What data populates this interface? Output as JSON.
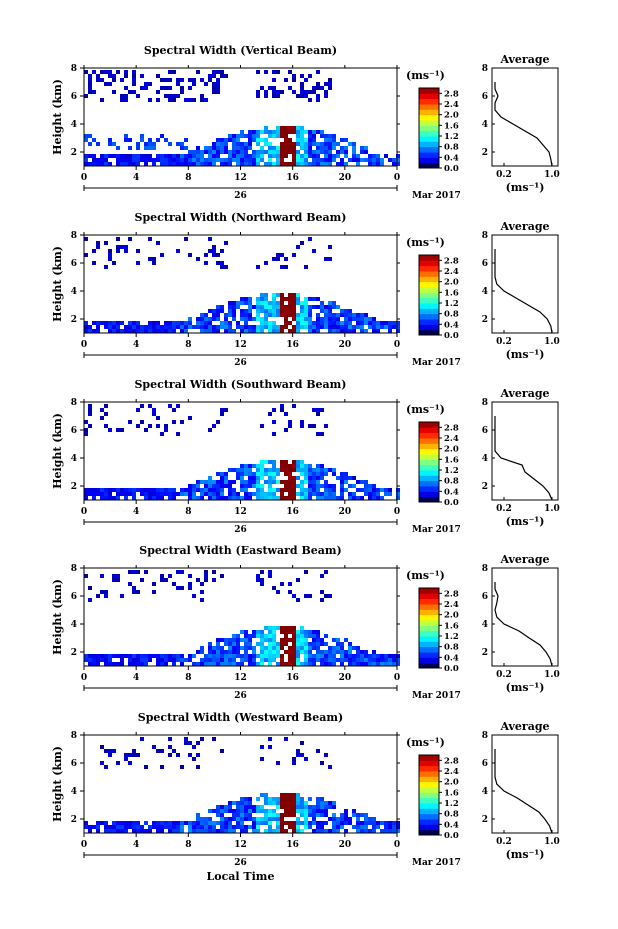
{
  "chart_data": [
    {
      "type": "heatmap",
      "title": "Spectral Width (Vertical Beam)",
      "ylabel": "Height (km)",
      "x_ticks": [
        "0",
        "4",
        "8",
        "12",
        "16",
        "20",
        "0"
      ],
      "y_ticks": [
        "2",
        "4",
        "6",
        "8"
      ],
      "xlim": [
        0,
        24
      ],
      "ylim": [
        1,
        8
      ],
      "date_day": "26",
      "date_month": "Mar 2017",
      "colorbar": {
        "unit": "(ms⁻¹)",
        "ticks": [
          "2.8",
          "2.4",
          "2.0",
          "1.6",
          "1.2",
          "0.8",
          "0.4",
          "0.0"
        ],
        "range": [
          0,
          3
        ]
      },
      "profile": {
        "title": "Average",
        "x_ticks": [
          "0.2",
          "1.0"
        ],
        "xlabel": "(ms⁻¹)",
        "y_ticks": [
          "2",
          "4",
          "6",
          "8"
        ],
        "xlim": [
          0,
          1.1
        ],
        "ylim": [
          1,
          8
        ],
        "heights": [
          1.0,
          1.5,
          2.0,
          2.5,
          3.0,
          3.5,
          4.0,
          4.5,
          5.0,
          5.5,
          6.0,
          6.5,
          7.0
        ],
        "values": [
          1.0,
          0.98,
          0.95,
          0.85,
          0.75,
          0.55,
          0.35,
          0.15,
          0.05,
          0.05,
          0.1,
          0.05,
          0.05
        ]
      }
    },
    {
      "type": "heatmap",
      "title": "Spectral Width (Northward Beam)",
      "ylabel": "Height (km)",
      "x_ticks": [
        "0",
        "4",
        "8",
        "12",
        "16",
        "20",
        "0"
      ],
      "y_ticks": [
        "2",
        "4",
        "6",
        "8"
      ],
      "xlim": [
        0,
        24
      ],
      "ylim": [
        1,
        8
      ],
      "date_day": "26",
      "date_month": "Mar 2017",
      "colorbar": {
        "unit": "(ms⁻¹)",
        "ticks": [
          "2.8",
          "2.4",
          "2.0",
          "1.6",
          "1.2",
          "0.8",
          "0.4",
          "0.0"
        ],
        "range": [
          0,
          3
        ]
      },
      "profile": {
        "title": "Average",
        "x_ticks": [
          "0.2",
          "1.0"
        ],
        "xlabel": "(ms⁻¹)",
        "y_ticks": [
          "2",
          "4",
          "6",
          "8"
        ],
        "xlim": [
          0,
          1.1
        ],
        "ylim": [
          1,
          8
        ],
        "heights": [
          1.0,
          1.5,
          2.0,
          2.5,
          3.0,
          3.5,
          4.0,
          4.5,
          5.0,
          5.5,
          6.0,
          6.5,
          7.0
        ],
        "values": [
          1.0,
          0.98,
          0.92,
          0.8,
          0.6,
          0.4,
          0.2,
          0.08,
          0.05,
          0.05,
          0.05,
          0.05,
          0.05
        ]
      }
    },
    {
      "type": "heatmap",
      "title": "Spectral Width (Southward Beam)",
      "ylabel": "Height (km)",
      "x_ticks": [
        "0",
        "4",
        "8",
        "12",
        "16",
        "20",
        "0"
      ],
      "y_ticks": [
        "2",
        "4",
        "6",
        "8"
      ],
      "xlim": [
        0,
        24
      ],
      "ylim": [
        1,
        8
      ],
      "date_day": "26",
      "date_month": "Mar 2017",
      "colorbar": {
        "unit": "(ms⁻¹)",
        "ticks": [
          "2.8",
          "2.4",
          "2.0",
          "1.6",
          "1.2",
          "0.8",
          "0.4",
          "0.0"
        ],
        "range": [
          0,
          3
        ]
      },
      "profile": {
        "title": "Average",
        "x_ticks": [
          "0.2",
          "1.0"
        ],
        "xlabel": "(ms⁻¹)",
        "y_ticks": [
          "2",
          "4",
          "6",
          "8"
        ],
        "xlim": [
          0,
          1.1
        ],
        "ylim": [
          1,
          8
        ],
        "heights": [
          1.0,
          1.5,
          2.0,
          2.5,
          3.0,
          3.5,
          4.0,
          4.5,
          5.0,
          5.5,
          6.0,
          6.5,
          7.0
        ],
        "values": [
          1.0,
          0.95,
          0.85,
          0.7,
          0.55,
          0.5,
          0.15,
          0.05,
          0.05,
          0.05,
          0.05,
          0.05,
          0.05
        ]
      }
    },
    {
      "type": "heatmap",
      "title": "Spectral Width (Eastward Beam)",
      "ylabel": "Height (km)",
      "x_ticks": [
        "0",
        "4",
        "8",
        "12",
        "16",
        "20",
        "0"
      ],
      "y_ticks": [
        "2",
        "4",
        "6",
        "8"
      ],
      "xlim": [
        0,
        24
      ],
      "ylim": [
        1,
        8
      ],
      "date_day": "26",
      "date_month": "Mar 2017",
      "colorbar": {
        "unit": "(ms⁻¹)",
        "ticks": [
          "2.8",
          "2.4",
          "2.0",
          "1.6",
          "1.2",
          "0.8",
          "0.4",
          "0.0"
        ],
        "range": [
          0,
          3
        ]
      },
      "profile": {
        "title": "Average",
        "x_ticks": [
          "0.2",
          "1.0"
        ],
        "xlabel": "(ms⁻¹)",
        "y_ticks": [
          "2",
          "4",
          "6",
          "8"
        ],
        "xlim": [
          0,
          1.1
        ],
        "ylim": [
          1,
          8
        ],
        "heights": [
          1.0,
          1.5,
          2.0,
          2.5,
          3.0,
          3.5,
          4.0,
          4.5,
          5.0,
          5.5,
          6.0,
          6.5,
          7.0
        ],
        "values": [
          1.0,
          0.97,
          0.9,
          0.8,
          0.62,
          0.45,
          0.2,
          0.08,
          0.05,
          0.08,
          0.1,
          0.05,
          0.05
        ]
      }
    },
    {
      "type": "heatmap",
      "title": "Spectral Width (Westward Beam)",
      "ylabel": "Height (km)",
      "x_ticks": [
        "0",
        "4",
        "8",
        "12",
        "16",
        "20",
        "0"
      ],
      "y_ticks": [
        "2",
        "4",
        "6",
        "8"
      ],
      "xlim": [
        0,
        24
      ],
      "ylim": [
        1,
        8
      ],
      "date_day": "26",
      "date_month": "Mar 2017",
      "xlabel": "Local Time",
      "colorbar": {
        "unit": "(ms⁻¹)",
        "ticks": [
          "2.8",
          "2.4",
          "2.0",
          "1.6",
          "1.2",
          "0.8",
          "0.4",
          "0.0"
        ],
        "range": [
          0,
          3
        ]
      },
      "profile": {
        "title": "Average",
        "x_ticks": [
          "0.2",
          "1.0"
        ],
        "xlabel": "(ms⁻¹)",
        "y_ticks": [
          "2",
          "4",
          "6",
          "8"
        ],
        "xlim": [
          0,
          1.1
        ],
        "ylim": [
          1,
          8
        ],
        "heights": [
          1.0,
          1.5,
          2.0,
          2.5,
          3.0,
          3.5,
          4.0,
          4.5,
          5.0,
          5.5,
          6.0,
          6.5,
          7.0
        ],
        "values": [
          1.0,
          0.96,
          0.88,
          0.78,
          0.6,
          0.42,
          0.2,
          0.08,
          0.05,
          0.05,
          0.05,
          0.05,
          0.05
        ]
      }
    }
  ]
}
